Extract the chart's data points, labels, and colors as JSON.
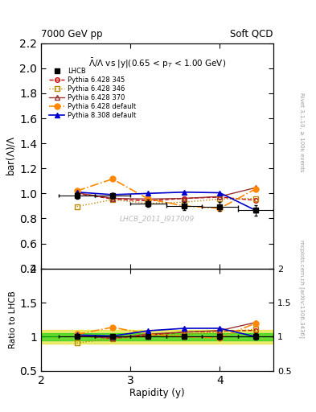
{
  "title_left": "7000 GeV pp",
  "title_right": "Soft QCD",
  "plot_title": "$\\bar{\\Lambda}/\\Lambda$ vs |y|(0.65 < p$_T$ < 1.00 GeV)",
  "ylabel_main": "bar($\\Lambda$)/$\\Lambda$",
  "ylabel_ratio": "Ratio to LHCB",
  "xlabel": "Rapidity (y)",
  "right_label_top": "Rivet 3.1.10, ≥ 100k events",
  "right_label_bottom": "mcplots.cern.ch [arXiv:1306.3436]",
  "watermark": "LHCB_2011_I917009",
  "ylim_main": [
    0.4,
    2.2
  ],
  "ylim_ratio": [
    0.5,
    2.0
  ],
  "xlim": [
    2.0,
    4.6
  ],
  "xticks": [
    2,
    3,
    4
  ],
  "lhcb_x": [
    2.4,
    2.8,
    3.2,
    3.6,
    4.0,
    4.4
  ],
  "lhcb_y": [
    0.985,
    0.98,
    0.92,
    0.9,
    0.895,
    0.865
  ],
  "lhcb_yerr": [
    0.025,
    0.025,
    0.03,
    0.03,
    0.035,
    0.04
  ],
  "p345_x": [
    2.4,
    2.8,
    3.2,
    3.6,
    4.0,
    4.4
  ],
  "p345_y": [
    1.0,
    0.955,
    0.94,
    0.96,
    0.97,
    0.945
  ],
  "p346_x": [
    2.4,
    2.8,
    3.2,
    3.6,
    4.0,
    4.4
  ],
  "p346_y": [
    0.895,
    0.95,
    0.92,
    0.93,
    0.955,
    0.96
  ],
  "p370_x": [
    2.4,
    2.8,
    3.2,
    3.6,
    4.0,
    4.4
  ],
  "p370_y": [
    1.005,
    0.96,
    0.955,
    0.96,
    0.975,
    1.045
  ],
  "pdef_x": [
    2.4,
    2.8,
    3.2,
    3.6,
    4.0,
    4.4
  ],
  "pdef_y": [
    1.02,
    1.115,
    0.955,
    0.9,
    0.88,
    1.035
  ],
  "p8def_x": [
    2.4,
    2.8,
    3.2,
    3.6,
    4.0,
    4.4
  ],
  "p8def_y": [
    1.01,
    0.99,
    1.0,
    1.01,
    1.005,
    0.865
  ],
  "color_345": "#cc0000",
  "color_346": "#bb8800",
  "color_370": "#993333",
  "color_pdef": "#ff8800",
  "color_p8def": "#0000cc",
  "color_lhcb": "#000000",
  "green_band": 0.05,
  "yellow_band": 0.1
}
